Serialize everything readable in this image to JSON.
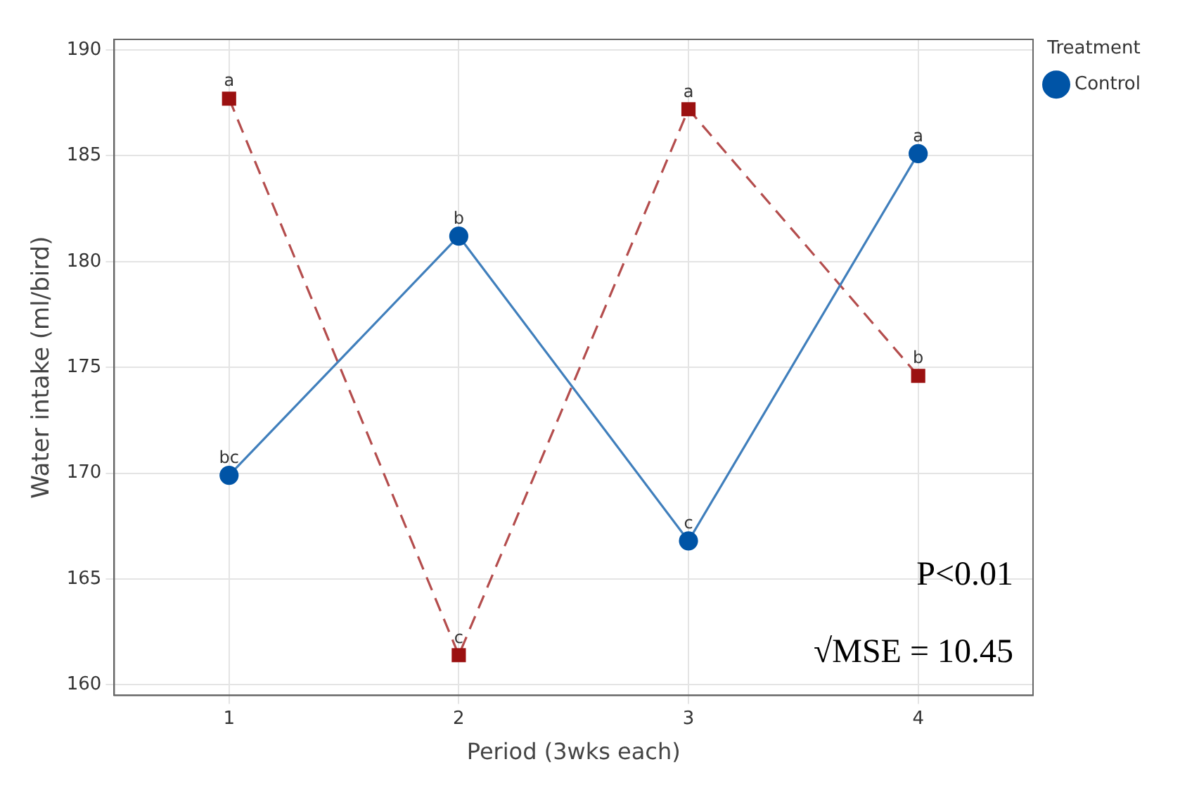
{
  "chart_data": {
    "type": "line",
    "xlabel": "Period (3wks each)",
    "ylabel": "Water intake (ml/bird)",
    "legend_title": "Treatment",
    "legend": "top right",
    "grid": true,
    "categories": [
      "1",
      "2",
      "3",
      "4"
    ],
    "ylim": [
      159.5,
      190.5
    ],
    "yticks": [
      160,
      165,
      170,
      175,
      180,
      185,
      190
    ],
    "series": [
      {
        "name": "Control",
        "color": "#0054a6",
        "values": [
          169.9,
          181.2,
          166.8,
          185.1
        ],
        "marker": "circle",
        "line_style": "solid"
      },
      {
        "color": "#9b1111",
        "values": [
          187.7,
          161.4,
          187.2,
          174.6
        ],
        "marker": "square",
        "line_style": "dashed"
      }
    ],
    "annotations": [
      {
        "text": "bc",
        "x": "1",
        "y": 169.9
      },
      {
        "text": "b",
        "x": "2",
        "y": 181.2
      },
      {
        "text": "c",
        "x": "3",
        "y": 166.8
      },
      {
        "text": "a",
        "x": "4",
        "y": 185.1
      },
      {
        "text": "a",
        "x": "1",
        "y": 187.7
      },
      {
        "text": "c",
        "x": "2",
        "y": 161.4
      },
      {
        "text": "a",
        "x": "3",
        "y": 187.2
      },
      {
        "text": "b",
        "x": "4",
        "y": 174.6
      },
      "P<0.01",
      "√MSE = 10.45"
    ]
  }
}
